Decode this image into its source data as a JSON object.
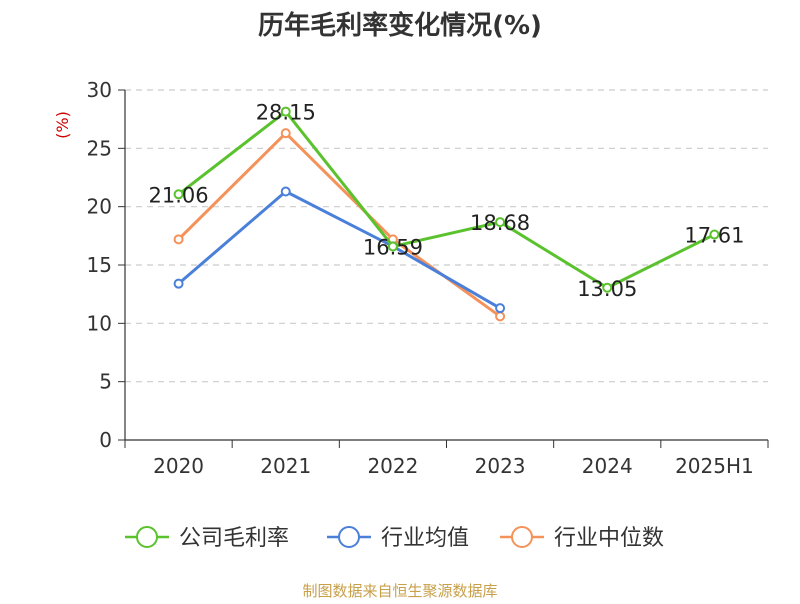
{
  "chart_data": {
    "type": "line",
    "title": "历年毛利率变化情况(%)",
    "ylabel": "(%)",
    "categories": [
      "2020",
      "2021",
      "2022",
      "2023",
      "2024",
      "2025H1"
    ],
    "ylim": [
      0,
      30
    ],
    "yticks": [
      0,
      5,
      10,
      15,
      20,
      25,
      30
    ],
    "grid": true,
    "legend_position": "bottom",
    "series": [
      {
        "name": "公司毛利率",
        "color": "#5ac22d",
        "values": [
          21.06,
          28.15,
          16.59,
          18.68,
          13.05,
          17.61
        ],
        "labels": [
          "21.06",
          "28.15",
          "16.59",
          "18.68",
          "13.05",
          "17.61"
        ]
      },
      {
        "name": "行业均值",
        "color": "#4a80d9",
        "values": [
          13.4,
          21.3,
          16.6,
          11.3,
          null,
          null
        ]
      },
      {
        "name": "行业中位数",
        "color": "#f5925a",
        "values": [
          17.2,
          26.3,
          17.2,
          10.6,
          null,
          null
        ]
      }
    ]
  },
  "source_note": "制图数据来自恒生聚源数据库",
  "colors": {
    "title": "#333333",
    "axis": "#333333",
    "ylabel": "#cc0000",
    "grid": "#cccccc",
    "source": "#c8a04a"
  }
}
